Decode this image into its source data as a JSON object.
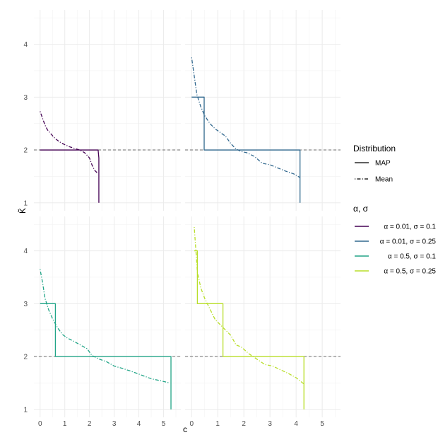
{
  "chart_data": {
    "type": "line",
    "xlabel": "c",
    "ylabel": "K̃",
    "xlim": [
      -0.25,
      5.7
    ],
    "ylim": [
      0.85,
      4.65
    ],
    "x_ticks": [
      0,
      1,
      2,
      3,
      4,
      5
    ],
    "y_ticks": [
      1,
      2,
      3,
      4
    ],
    "reference_line": {
      "y": 2,
      "style": "dashed",
      "color": "#6b6b6b"
    },
    "grid": true,
    "legend": {
      "placement": "right",
      "distribution_title": "Distribution",
      "distribution_items": [
        {
          "label": "MAP",
          "linetype": "solid"
        },
        {
          "label": "Mean",
          "linetype": "dotdash"
        }
      ],
      "params_title": "α, σ",
      "params_items": [
        {
          "label": "α = 0.01, σ = 0.1",
          "color": "#440154"
        },
        {
          "label": "α = 0.01, σ = 0.25",
          "color": "#31688E"
        },
        {
          "label": "α = 0.5, σ = 0.1",
          "color": "#20A486"
        },
        {
          "label": "α = 0.5, σ = 0.25",
          "color": "#B8DE29"
        }
      ]
    },
    "panels": [
      {
        "params": "α = 0.01, σ = 0.1",
        "color": "#440154",
        "series": [
          {
            "name": "MAP",
            "linetype": "solid",
            "x": [
              0,
              2.35,
              2.35,
              2.38,
              2.38
            ],
            "y": [
              2,
              2,
              2,
              1.85,
              1.0
            ]
          },
          {
            "name": "Mean",
            "linetype": "dotdash",
            "x": [
              0,
              0.1,
              0.2,
              0.3,
              0.45,
              0.6,
              0.8,
              1.0,
              1.2,
              1.4,
              1.6,
              1.8,
              2.0,
              2.1,
              2.2,
              2.35
            ],
            "y": [
              2.73,
              2.6,
              2.47,
              2.38,
              2.3,
              2.22,
              2.15,
              2.1,
              2.06,
              2.03,
              2.0,
              1.95,
              1.85,
              1.72,
              1.62,
              1.55
            ]
          }
        ]
      },
      {
        "params": "α = 0.01, σ = 0.25",
        "color": "#31688E",
        "series": [
          {
            "name": "MAP",
            "linetype": "solid",
            "x": [
              0,
              0.48,
              0.48,
              4.15,
              4.15
            ],
            "y": [
              3,
              3,
              2,
              2,
              1.0
            ]
          },
          {
            "name": "Mean",
            "linetype": "dotdash",
            "x": [
              0,
              0.1,
              0.2,
              0.35,
              0.5,
              0.7,
              0.9,
              1.1,
              1.3,
              1.5,
              1.7,
              1.9,
              2.1,
              2.4,
              2.7,
              3.0,
              3.3,
              3.6,
              3.9,
              4.15
            ],
            "y": [
              3.75,
              3.4,
              3.05,
              2.82,
              2.65,
              2.5,
              2.4,
              2.33,
              2.26,
              2.12,
              2.02,
              1.97,
              1.95,
              1.88,
              1.75,
              1.72,
              1.66,
              1.6,
              1.55,
              1.48
            ]
          }
        ]
      },
      {
        "params": "α = 0.5, σ = 0.1",
        "color": "#20A486",
        "series": [
          {
            "name": "MAP",
            "linetype": "solid",
            "x": [
              0,
              0.62,
              0.62,
              5.3,
              5.3
            ],
            "y": [
              3,
              3,
              2,
              2,
              1.0
            ]
          },
          {
            "name": "Mean",
            "linetype": "dotdash",
            "x": [
              0,
              0.1,
              0.2,
              0.35,
              0.5,
              0.7,
              0.9,
              1.1,
              1.4,
              1.7,
              1.9,
              2.1,
              2.4,
              2.7,
              3.0,
              3.3,
              3.7,
              4.1,
              4.5,
              4.9,
              5.25
            ],
            "y": [
              3.65,
              3.4,
              3.1,
              2.88,
              2.72,
              2.55,
              2.42,
              2.35,
              2.28,
              2.2,
              2.15,
              2.02,
              1.95,
              1.9,
              1.82,
              1.78,
              1.72,
              1.65,
              1.58,
              1.54,
              1.5
            ]
          }
        ]
      },
      {
        "params": "α = 0.5, σ = 0.25",
        "color": "#B8DE29",
        "series": [
          {
            "name": "MAP",
            "linetype": "solid",
            "x": [
              0.1,
              0.22,
              0.22,
              1.2,
              1.2,
              4.3,
              4.3
            ],
            "y": [
              4,
              4,
              3,
              3,
              2,
              2,
              1.0
            ]
          },
          {
            "name": "Mean",
            "linetype": "dotdash",
            "x": [
              0.1,
              0.15,
              0.22,
              0.35,
              0.5,
              0.7,
              0.9,
              1.1,
              1.3,
              1.5,
              1.7,
              1.9,
              2.2,
              2.5,
              2.8,
              3.1,
              3.4,
              3.7,
              4.0,
              4.3
            ],
            "y": [
              4.45,
              4.1,
              3.6,
              3.3,
              3.1,
              2.9,
              2.7,
              2.6,
              2.5,
              2.4,
              2.22,
              2.18,
              2.05,
              1.95,
              1.85,
              1.82,
              1.75,
              1.68,
              1.6,
              1.48
            ]
          }
        ]
      }
    ]
  }
}
